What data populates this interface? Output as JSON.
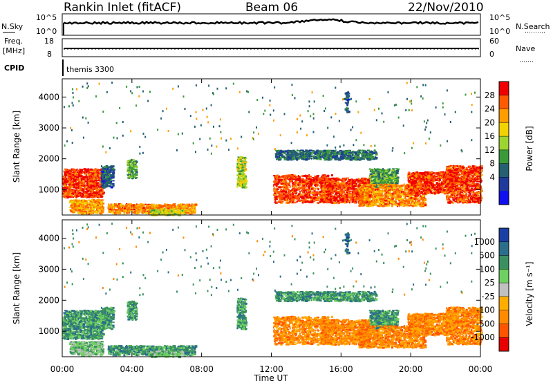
{
  "header": {
    "station": "Rankin Inlet (fitACF)",
    "beam": "Beam 06",
    "date": "22/Nov/2010"
  },
  "noise_panel": {
    "left_label": "N.Sky",
    "left_ticks": [
      "10^5",
      "10^0"
    ],
    "right_label": "N.Search",
    "right_ticks": [
      "10^5",
      "10^0"
    ]
  },
  "freq_panel": {
    "left_label_1": "Freq.",
    "left_label_2": "[MHz]",
    "left_ticks": [
      "18",
      "8"
    ],
    "right_label": "Nave",
    "right_ticks": [
      "60",
      "0"
    ]
  },
  "cpid_panel": {
    "label": "CPID",
    "value": "themis 3300"
  },
  "axes": {
    "x_ticks": [
      "00:00",
      "04:00",
      "08:00",
      "12:00",
      "16:00",
      "20:00",
      "00:00"
    ],
    "x_label": "Time UT",
    "y_ticks": [
      "1000",
      "2000",
      "3000",
      "4000"
    ],
    "y_label": "Slant Range [km]"
  },
  "power_colorbar": {
    "label": "Power [dB]",
    "ticks": [
      "28",
      "24",
      "20",
      "16",
      "12",
      "8",
      "4"
    ],
    "colors": [
      "#f00000",
      "#ff5a00",
      "#ff9c00",
      "#f2d200",
      "#9ed430",
      "#3a9a3a",
      "#246070",
      "#1e3a9c",
      "#1010f0"
    ]
  },
  "velocity_colorbar": {
    "label": "Velocity [m s⁻¹]",
    "ticks": [
      "1000",
      "500",
      "100",
      "25",
      "-25",
      "-100",
      "-500",
      "-1000"
    ],
    "colors": [
      "#1a3fa5",
      "#2b6e8a",
      "#3a9060",
      "#6ed060",
      "#c0c0c0",
      "#ffae00",
      "#ff8a00",
      "#ff5500",
      "#e80000"
    ]
  },
  "chart_data": {
    "type": "heatmap",
    "title": "Rankin Inlet (fitACF)",
    "xlabel": "Time UT",
    "ylabel": "Slant Range [km]",
    "x_range_hours": [
      0,
      24
    ],
    "y_range_km": [
      180,
      4590
    ],
    "regions": [
      {
        "t0": 0.0,
        "t1": 2.3,
        "r0": 780,
        "r1": 1700,
        "power": 28,
        "velocity": 100
      },
      {
        "t0": 0.4,
        "t1": 2.3,
        "r0": 250,
        "r1": 700,
        "power": 22,
        "velocity": 25
      },
      {
        "t0": 2.2,
        "t1": 2.9,
        "r0": 1100,
        "r1": 1800,
        "power": 6,
        "velocity": 100
      },
      {
        "t0": 3.7,
        "t1": 4.2,
        "r0": 1400,
        "r1": 2000,
        "power": 12,
        "velocity": 100
      },
      {
        "t0": 2.6,
        "t1": 7.6,
        "r0": 260,
        "r1": 560,
        "power": 24,
        "velocity": 100
      },
      {
        "t0": 5.0,
        "t1": 7.0,
        "r0": 200,
        "r1": 400,
        "power": 16,
        "velocity": 25
      },
      {
        "t0": 10.0,
        "t1": 10.5,
        "r0": 1100,
        "r1": 2100,
        "power": 16,
        "velocity": 100
      },
      {
        "t0": 12.1,
        "t1": 15.5,
        "r0": 600,
        "r1": 1500,
        "power": 28,
        "velocity": -100
      },
      {
        "t0": 14.8,
        "t1": 17.6,
        "r0": 600,
        "r1": 1400,
        "power": 28,
        "velocity": -100
      },
      {
        "t0": 17.6,
        "t1": 19.2,
        "r0": 1100,
        "r1": 1700,
        "power": 12,
        "velocity": 100
      },
      {
        "t0": 17.0,
        "t1": 20.8,
        "r0": 500,
        "r1": 1200,
        "power": 24,
        "velocity": -100
      },
      {
        "t0": 19.8,
        "t1": 22.5,
        "r0": 900,
        "r1": 1600,
        "power": 28,
        "velocity": -100
      },
      {
        "t0": 22.0,
        "t1": 24.0,
        "r0": 600,
        "r1": 1800,
        "power": 28,
        "velocity": -100
      },
      {
        "t0": 12.2,
        "t1": 18.0,
        "r0": 2000,
        "r1": 2300,
        "power": 8,
        "velocity": 100
      },
      {
        "t0": 16.2,
        "t1": 16.4,
        "r0": 3500,
        "r1": 4200,
        "power": 6,
        "velocity": 500
      }
    ]
  }
}
